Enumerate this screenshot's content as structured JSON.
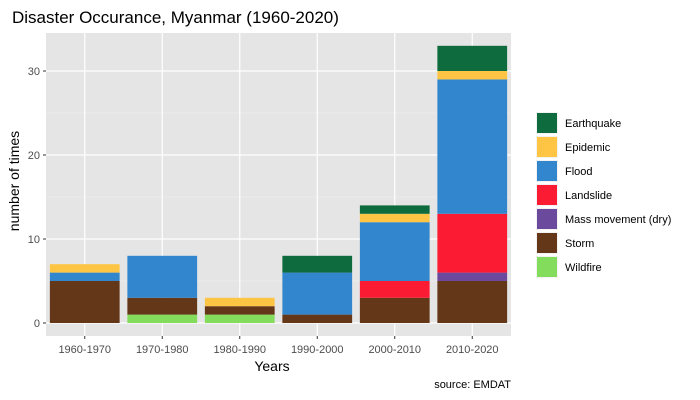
{
  "chart_data": {
    "type": "bar",
    "stacked": true,
    "title": "Disaster Occurance, Myanmar (1960-2020)",
    "xlabel": "Years",
    "ylabel": "number of times",
    "caption": "source: EMDAT",
    "categories": [
      "1960-1970",
      "1970-1980",
      "1980-1990",
      "1990-2000",
      "2000-2010",
      "2010-2020"
    ],
    "ylim": [
      0,
      34
    ],
    "yticks": [
      0,
      10,
      20,
      30
    ],
    "grid": true,
    "legend_position": "right",
    "series": [
      {
        "name": "Earthquake",
        "color": "#0e6b3d",
        "values": [
          0,
          0,
          0,
          2,
          1,
          3
        ]
      },
      {
        "name": "Epidemic",
        "color": "#fdc543",
        "values": [
          1,
          0,
          1,
          0,
          1,
          1
        ]
      },
      {
        "name": "Flood",
        "color": "#3286ce",
        "values": [
          1,
          5,
          0,
          5,
          7,
          16
        ]
      },
      {
        "name": "Landslide",
        "color": "#fb1b33",
        "values": [
          0,
          0,
          0,
          0,
          2,
          7
        ]
      },
      {
        "name": "Mass movement (dry)",
        "color": "#6b4a9d",
        "values": [
          0,
          0,
          0,
          0,
          0,
          1
        ]
      },
      {
        "name": "Storm",
        "color": "#643718",
        "values": [
          5,
          2,
          1,
          1,
          3,
          5
        ]
      },
      {
        "name": "Wildfire",
        "color": "#84dc5c",
        "values": [
          0,
          1,
          1,
          0,
          0,
          0
        ]
      }
    ]
  }
}
